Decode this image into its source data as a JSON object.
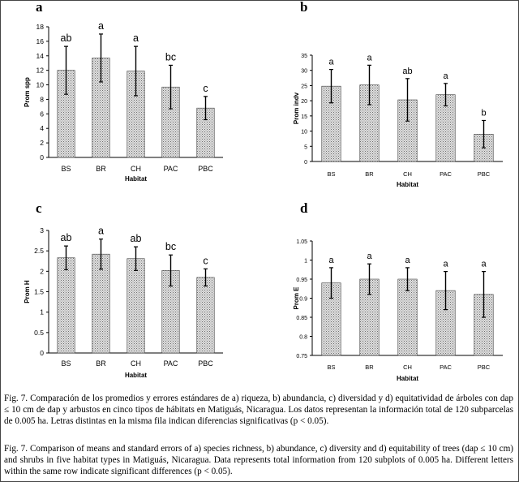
{
  "chart_data": [
    {
      "type": "bar",
      "panel_label": "a",
      "categories": [
        "BS",
        "BR",
        "CH",
        "PAC",
        "PBC"
      ],
      "values": [
        12.0,
        13.7,
        11.9,
        9.7,
        6.8
      ],
      "errors": [
        3.3,
        3.3,
        3.4,
        3.0,
        1.6
      ],
      "letters": [
        "ab",
        "a",
        "a",
        "bc",
        "c"
      ],
      "xlabel": "Habitat",
      "ylabel": "Prom spp",
      "ylim": [
        0,
        18
      ],
      "yticks": [
        0,
        2,
        4,
        6,
        8,
        10,
        12,
        14,
        16,
        18
      ],
      "grid": false
    },
    {
      "type": "bar",
      "panel_label": "b",
      "categories": [
        "BS",
        "BR",
        "CH",
        "PAC",
        "PBC"
      ],
      "values": [
        24.8,
        25.2,
        20.3,
        22.0,
        9.0
      ],
      "errors": [
        5.5,
        6.5,
        7.0,
        3.7,
        4.5
      ],
      "letters": [
        "a",
        "a",
        "ab",
        "a",
        "b"
      ],
      "xlabel": "Habitat",
      "ylabel": "Prom indv",
      "ylim": [
        0,
        35
      ],
      "yticks": [
        0,
        5,
        10,
        15,
        20,
        25,
        30,
        35
      ],
      "grid": false
    },
    {
      "type": "bar",
      "panel_label": "c",
      "categories": [
        "BS",
        "BR",
        "CH",
        "PAC",
        "PBC"
      ],
      "values": [
        2.33,
        2.42,
        2.31,
        2.02,
        1.85
      ],
      "errors": [
        0.29,
        0.37,
        0.29,
        0.38,
        0.21
      ],
      "letters": [
        "ab",
        "a",
        "ab",
        "bc",
        "c"
      ],
      "xlabel": "Habitat",
      "ylabel": "Prom H",
      "ylim": [
        0,
        3
      ],
      "yticks": [
        "0",
        "0.5",
        "1",
        "1.5",
        "2",
        "2.5",
        "3"
      ],
      "grid": false
    },
    {
      "type": "bar",
      "panel_label": "d",
      "categories": [
        "BS",
        "BR",
        "CH",
        "PAC",
        "PBC"
      ],
      "values": [
        0.94,
        0.95,
        0.95,
        0.92,
        0.91
      ],
      "errors": [
        0.04,
        0.04,
        0.03,
        0.05,
        0.06
      ],
      "letters": [
        "a",
        "a",
        "a",
        "a",
        "a"
      ],
      "xlabel": "Habitat",
      "ylabel": "Prom E",
      "ylim": [
        0.75,
        1.05
      ],
      "yticks": [
        "0.75",
        "0.8",
        "0.85",
        "0.9",
        "0.95",
        "1",
        "1.05"
      ],
      "grid": false
    }
  ],
  "captions": {
    "es": "Fig. 7. Comparación de los promedios y errores estándares de a) riqueza, b) abundancia, c) diversidad y d) equitatividad de árboles con dap ≤ 10 cm de dap y arbustos en cinco tipos de hábitats en Matiguás, Nicaragua. Los datos representan la información total de 120 subparcelas de 0.005 ha. Letras distintas en la misma fila indican diferencias significativas (p < 0.05).",
    "en": "Fig. 7. Comparison of means and standard errors of a) species richness, b) abundance, c) diversity and d) equitability of trees (dap ≤ 10 cm) and shrubs in five habitat types in Matiguás, Nicaragua. Data represents total information from 120 subplots of 0.005 ha.  Different letters within the same row indicate significant differences (p < 0.05)."
  },
  "colors": {
    "bar_fill": "#d9d9d9",
    "bar_stipple": "#7a7a7a",
    "axis": "#000000"
  }
}
